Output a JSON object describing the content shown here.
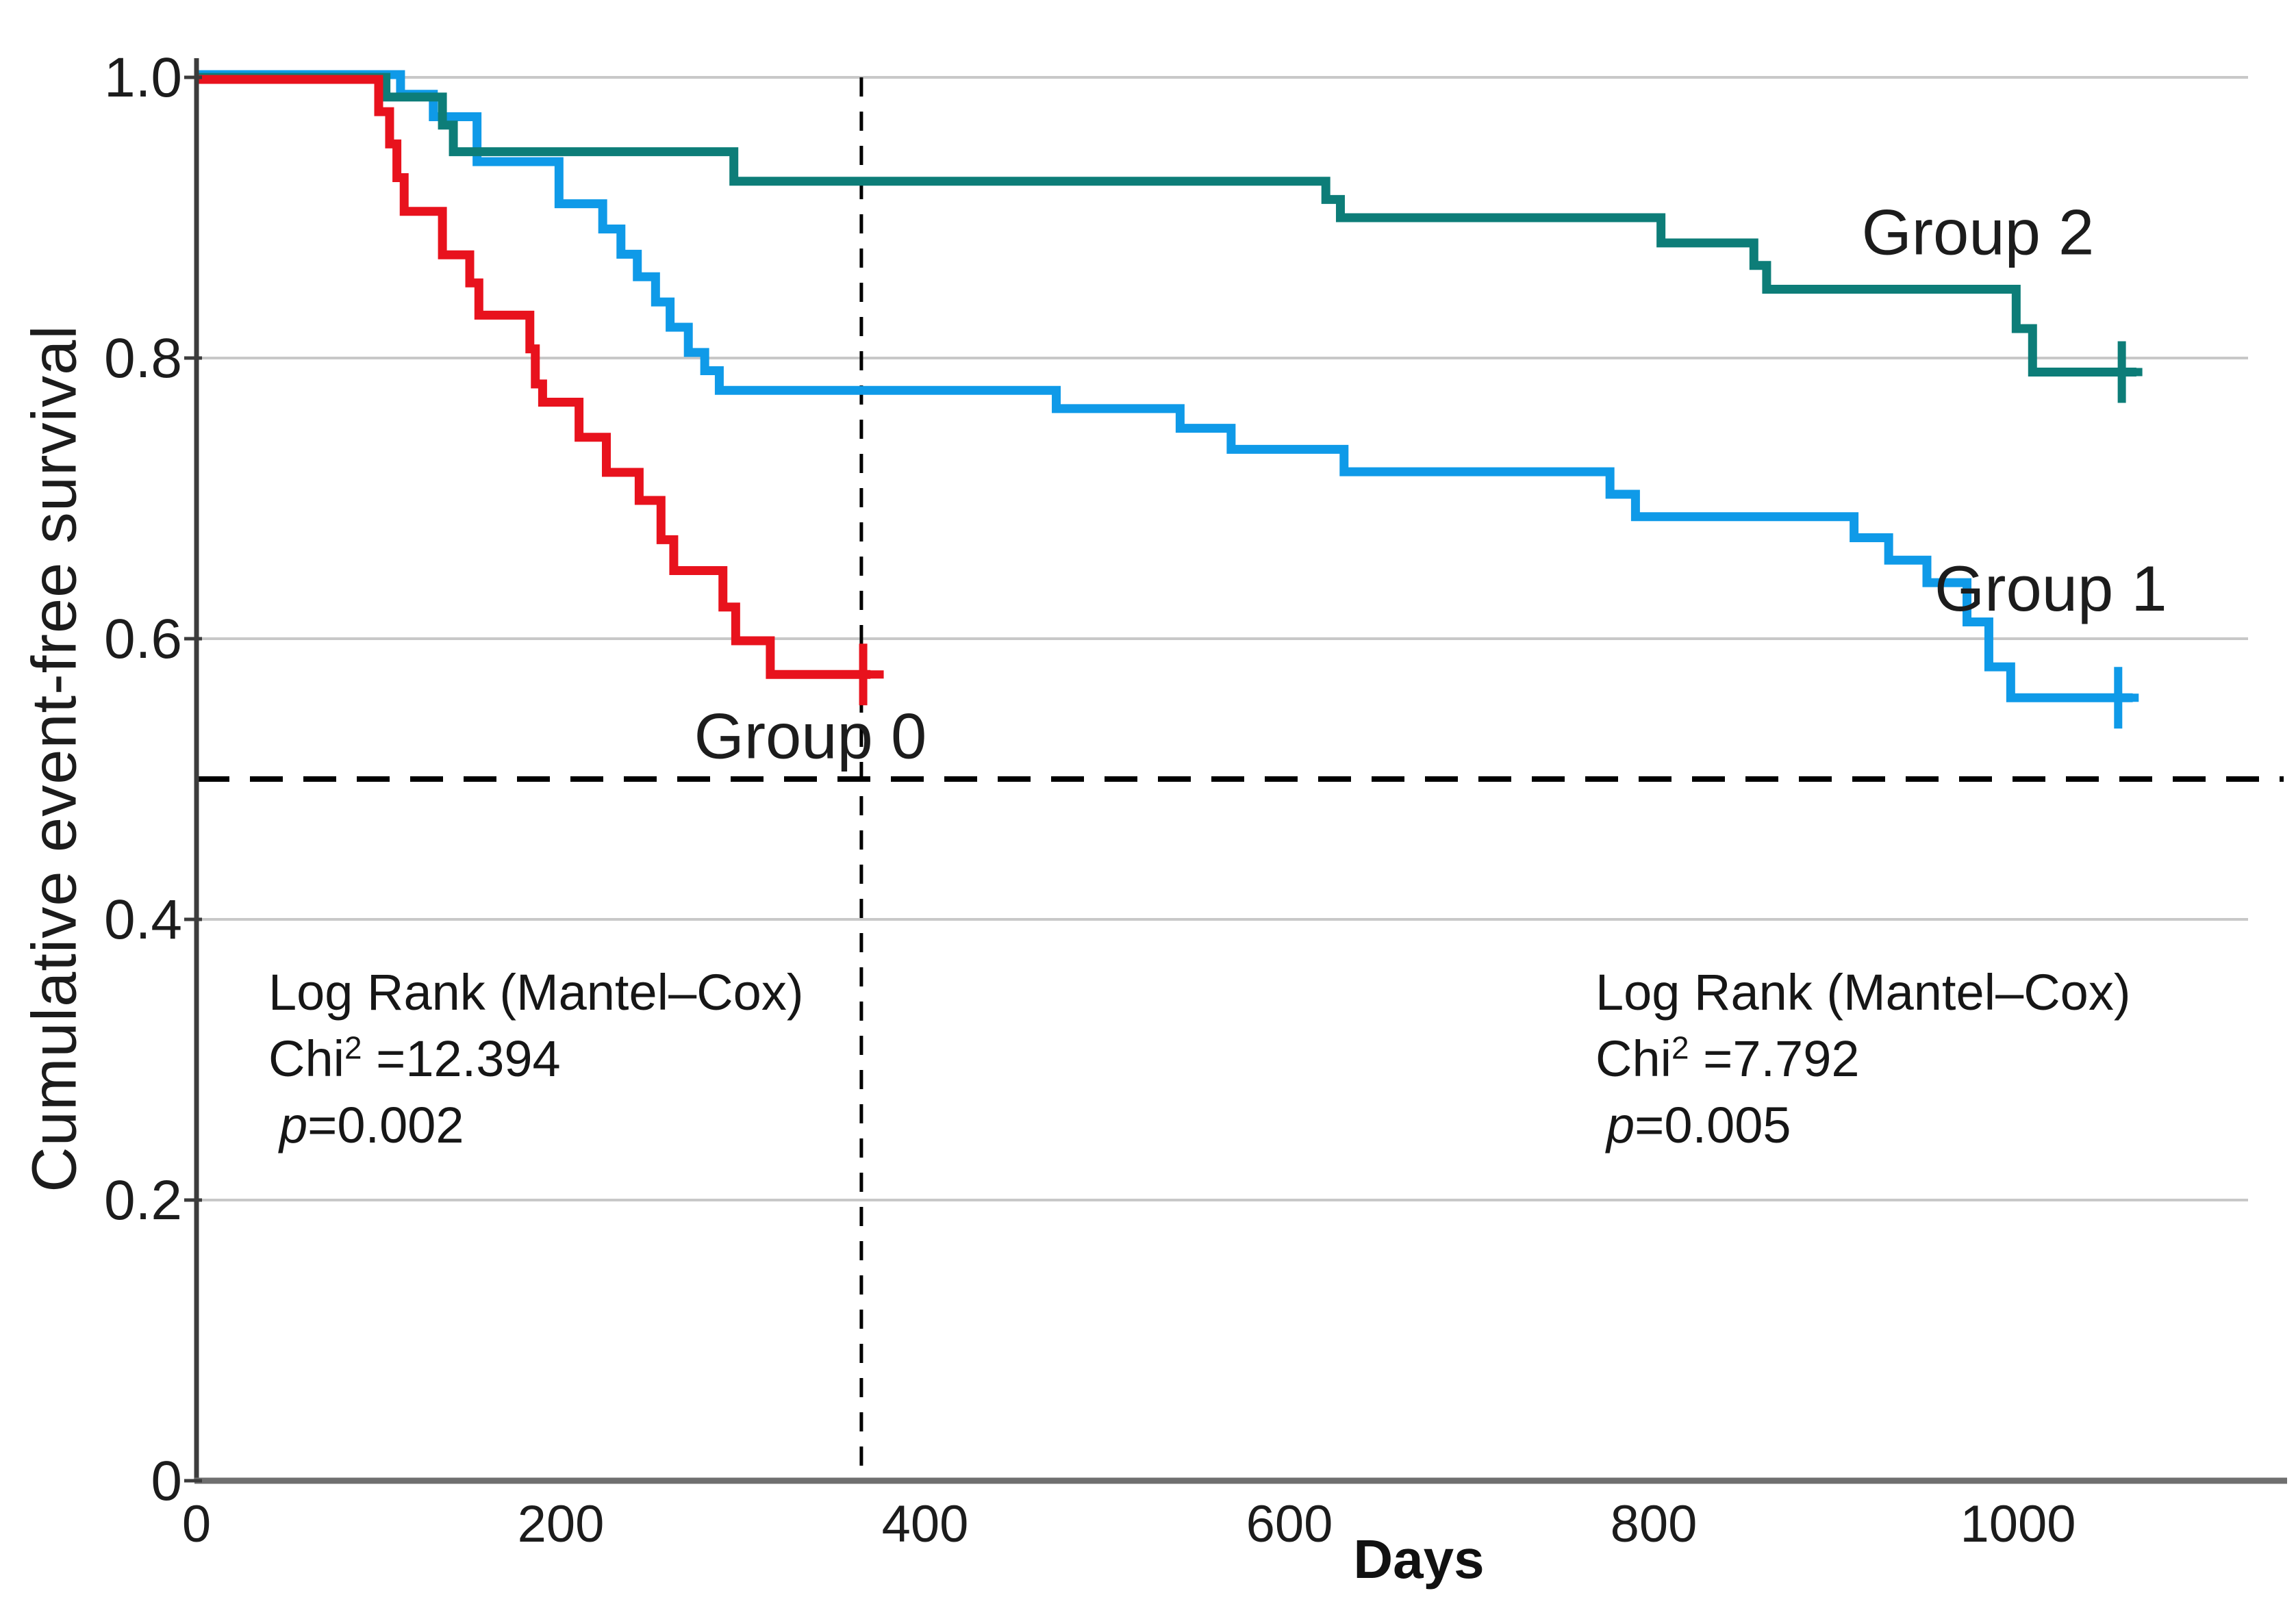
{
  "chart_data": {
    "type": "line",
    "subtype": "kaplan-meier-step",
    "title": "",
    "xlabel": "Days",
    "ylabel": "Cumulative event-free survival",
    "xlim": [
      0,
      1150
    ],
    "ylim": [
      0,
      1.0
    ],
    "grid": true,
    "x_ticks": [
      {
        "day": 0,
        "label": "0"
      },
      {
        "day": 200,
        "label": "200"
      },
      {
        "day": 400,
        "label": "400"
      },
      {
        "day": 600,
        "label": "600"
      },
      {
        "day": 800,
        "label": "800"
      },
      {
        "day": 1000,
        "label": "1000"
      }
    ],
    "y_ticks": [
      {
        "v": 1.0,
        "label": "1.0"
      },
      {
        "v": 0.8,
        "label": "0.8"
      },
      {
        "v": 0.6,
        "label": "0.6"
      },
      {
        "v": 0.4,
        "label": "0.4"
      },
      {
        "v": 0.2,
        "label": "0.2"
      },
      {
        "v": 0.0,
        "label": "0"
      }
    ],
    "reference_lines": {
      "horizontal_dashed_at_v": 0.5,
      "vertical_dashed_at_day": 365
    },
    "series": [
      {
        "name": "Group 1",
        "color": "#0f9ae8",
        "y_offset": -4,
        "steps": [
          [
            0,
            1.0
          ],
          [
            112,
            0.986
          ],
          [
            130,
            0.97
          ],
          [
            154,
            0.938
          ],
          [
            199,
            0.908
          ],
          [
            223,
            0.89
          ],
          [
            233,
            0.872
          ],
          [
            242,
            0.856
          ],
          [
            252,
            0.838
          ],
          [
            260,
            0.82
          ],
          [
            270,
            0.802
          ],
          [
            279,
            0.789
          ],
          [
            287,
            0.775
          ],
          [
            472,
            0.762
          ],
          [
            540,
            0.748
          ],
          [
            568,
            0.733
          ],
          [
            630,
            0.717
          ],
          [
            776,
            0.701
          ],
          [
            790,
            0.685
          ],
          [
            910,
            0.67
          ],
          [
            929,
            0.654
          ],
          [
            950,
            0.638
          ],
          [
            972,
            0.61
          ],
          [
            984,
            0.578
          ],
          [
            996,
            0.556
          ]
        ],
        "end_day": 1063,
        "censor_days": [
          1055
        ],
        "label": {
          "text": "Group 1",
          "day": 1018,
          "v": 0.632
        }
      },
      {
        "name": "Group 2",
        "color": "#0d7d78",
        "y_offset": 0,
        "steps": [
          [
            0,
            1.0
          ],
          [
            104,
            0.986
          ],
          [
            135,
            0.966
          ],
          [
            141,
            0.947
          ],
          [
            295,
            0.926
          ],
          [
            620,
            0.913
          ],
          [
            628,
            0.9
          ],
          [
            804,
            0.882
          ],
          [
            855,
            0.866
          ],
          [
            862,
            0.849
          ],
          [
            999,
            0.821
          ],
          [
            1008,
            0.79
          ]
        ],
        "end_day": 1065,
        "censor_days": [
          1057
        ],
        "label": {
          "text": "Group 2",
          "day": 978,
          "v": 0.886
        }
      },
      {
        "name": "Group 0",
        "color": "#e8121d",
        "y_offset": 3,
        "steps": [
          [
            0,
            1.0
          ],
          [
            100,
            0.977
          ],
          [
            106,
            0.954
          ],
          [
            110,
            0.93
          ],
          [
            114,
            0.906
          ],
          [
            135,
            0.875
          ],
          [
            150,
            0.855
          ],
          [
            155,
            0.832
          ],
          [
            183,
            0.808
          ],
          [
            186,
            0.783
          ],
          [
            190,
            0.77
          ],
          [
            210,
            0.745
          ],
          [
            225,
            0.72
          ],
          [
            243,
            0.7
          ],
          [
            255,
            0.672
          ],
          [
            262,
            0.65
          ],
          [
            289,
            0.624
          ],
          [
            296,
            0.6
          ],
          [
            315,
            0.576
          ]
        ],
        "end_day": 370,
        "censor_days": [
          366
        ],
        "label": {
          "text": "Group 0",
          "day": 337,
          "v": 0.527
        }
      }
    ],
    "colors": {
      "gridline": "#c8c8c8",
      "y_axis": "#3c3c3c",
      "x_axis": "#6f6f6f",
      "dashed_reference": "#000000",
      "text": "#1c1c1c"
    }
  },
  "stats_left": {
    "line1": "Log Rank (Mantel–Cox)",
    "chi_label": "Chi",
    "chi_sup": "2",
    "chi_value": " =12.394",
    "p_label": "p",
    "p_value": "=0.002"
  },
  "stats_right": {
    "line1": "Log Rank (Mantel–Cox)",
    "chi_label": "Chi",
    "chi_sup": "2",
    "chi_value": " =7.792",
    "p_label": "p",
    "p_value": "=0.005"
  },
  "axis_titles": {
    "x": "Days",
    "y": "Cumulative event-free survival"
  }
}
